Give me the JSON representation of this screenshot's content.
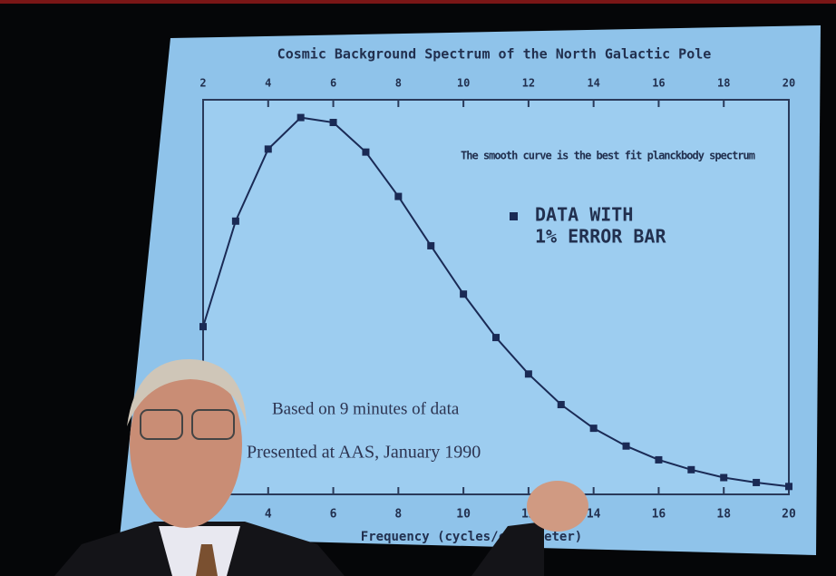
{
  "chart_data": {
    "type": "scatter",
    "title": "Cosmic Background Spectrum of the North Galactic Pole",
    "note": "The smooth curve is the best fit planckbody spectrum",
    "legend_lines": [
      "DATA WITH",
      "1% ERROR BAR"
    ],
    "annotations": [
      "Based on 9 minutes of data",
      "Presented at AAS, January 1990"
    ],
    "x_label": "Frequency (cycles/centimeter)",
    "x": [
      2,
      3,
      4,
      5,
      6,
      7,
      8,
      9,
      10,
      11,
      12,
      13,
      14,
      15,
      16,
      17,
      18,
      19,
      20
    ],
    "series": [
      {
        "color": "#1a2a55",
        "values": [
          170,
          277,
          350,
          382,
          377,
          347,
          302,
          252,
          203,
          159,
          122,
          91,
          67,
          49,
          35,
          25,
          17,
          12,
          8
        ]
      }
    ],
    "xlim": [
      2,
      20
    ],
    "ylim": [
      0,
      400
    ],
    "xticks": [
      2,
      4,
      6,
      8,
      10,
      12,
      14,
      16,
      18,
      20
    ]
  }
}
